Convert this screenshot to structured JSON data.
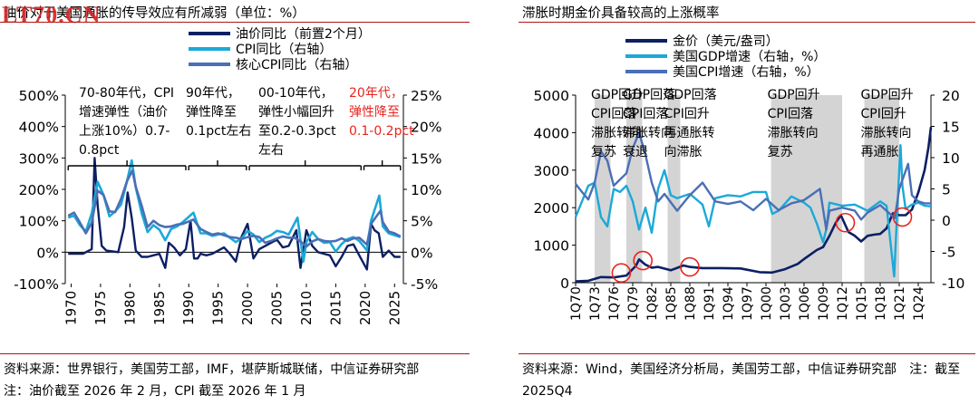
{
  "left": {
    "title": "油价对于美国通胀的传导效应有所减弱（单位：%）",
    "watermark": "LT70.CN",
    "source": "资料来源：世界银行，美国劳工部，IMF，堪萨斯城联储，中信证券研究部　注：油价截至 2026 年 2 月，CPI 截至 2026 年 1 月",
    "annotations": [
      {
        "lines": [
          "70-80年代，CPI",
          "增速弹性（油价",
          "上涨10%）0.7-",
          "0.8pct"
        ],
        "color": "#000000"
      },
      {
        "lines": [
          "90年代，",
          "弹性降至",
          "0.1pct左右"
        ],
        "color": "#000000"
      },
      {
        "lines": [
          "00-10年代，",
          "弹性小幅回升",
          "至0.2-0.3pct",
          "左右"
        ],
        "color": "#000000"
      },
      {
        "lines": [
          "20年代，",
          "弹性降至",
          "0.1-0.2pct"
        ],
        "color": "#e8251f"
      }
    ],
    "chart_data": {
      "type": "line",
      "title": "油价对于美国通胀的传导效应有所减弱（单位：%）",
      "x_ticks": [
        "1970",
        "1975",
        "1980",
        "1985",
        "1990",
        "1995",
        "2000",
        "2005",
        "2010",
        "2015",
        "2020",
        "2025"
      ],
      "y_left_ticks": [
        "500%",
        "400%",
        "300%",
        "200%",
        "100%",
        "0%",
        "-100%"
      ],
      "y_right_ticks": [
        "25%",
        "20%",
        "15%",
        "10%",
        "5%",
        "0%",
        "-5%"
      ],
      "ylim_left": [
        -100,
        500
      ],
      "ylim_right": [
        -5,
        25
      ],
      "xlim": [
        1969,
        2026.5
      ],
      "legend_position": "top-right",
      "series": [
        {
          "name": "油价同比（前置2个月）",
          "axis": "left",
          "color": "#0b1f63",
          "x": [
            1969.5,
            1970.5,
            1972,
            1973.5,
            1974,
            1974.5,
            1975.2,
            1976,
            1978,
            1979,
            1979.6,
            1980.3,
            1981,
            1982,
            1983,
            1984,
            1985,
            1986,
            1986.6,
            1987.5,
            1988.5,
            1989.5,
            1990.3,
            1990.9,
            1991.5,
            1992,
            1993,
            1994,
            1995,
            1996,
            1997,
            1998,
            1999,
            2000,
            2001,
            2002,
            2003,
            2004,
            2005,
            2006,
            2007,
            2008.3,
            2009,
            2010,
            2011,
            2012,
            2013,
            2014,
            2015,
            2016,
            2017,
            2018,
            2019,
            2020.3,
            2021,
            2021.6,
            2022.3,
            2023,
            2024,
            2025,
            2026
          ],
          "values": [
            -5,
            -5,
            -5,
            10,
            300,
            150,
            20,
            5,
            0,
            80,
            190,
            110,
            5,
            -15,
            -15,
            -10,
            -5,
            -50,
            30,
            15,
            -10,
            10,
            100,
            -20,
            -20,
            -5,
            -10,
            -5,
            5,
            15,
            -5,
            -30,
            50,
            90,
            -20,
            10,
            20,
            30,
            40,
            15,
            20,
            70,
            -50,
            70,
            20,
            0,
            -5,
            -10,
            -45,
            -15,
            20,
            25,
            -10,
            -55,
            90,
            70,
            60,
            -15,
            5,
            -15,
            -15
          ]
        },
        {
          "name": "CPI同比（右轴）",
          "axis": "right",
          "color": "#1ba9d8",
          "x": [
            1969.5,
            1970.5,
            1971.5,
            1972.5,
            1973.5,
            1974.5,
            1975.5,
            1976.5,
            1977.5,
            1978.5,
            1979.5,
            1980.3,
            1981,
            1982,
            1983,
            1984,
            1985,
            1986,
            1987,
            1988,
            1989,
            1990.8,
            1992,
            1993,
            1994,
            1995,
            1996,
            1997,
            1998,
            1999,
            2000,
            2001,
            2002,
            2003,
            2004,
            2005,
            2006,
            2007,
            2008.5,
            2009.5,
            2010,
            2011,
            2012,
            2013,
            2014,
            2015,
            2016,
            2017,
            2018,
            2019,
            2020.3,
            2021,
            2022.4,
            2023,
            2024,
            2025,
            2026
          ],
          "values": [
            5.5,
            5.8,
            4.3,
            3.3,
            6.2,
            11.2,
            9.1,
            5.7,
            6.5,
            7.6,
            11.3,
            14.6,
            10.3,
            6.2,
            3.2,
            4.3,
            3.6,
            1.9,
            3.7,
            4.1,
            4.8,
            6.3,
            3.0,
            3.0,
            2.6,
            2.8,
            3.0,
            2.3,
            1.6,
            2.2,
            3.4,
            2.8,
            1.6,
            2.3,
            2.7,
            3.4,
            3.2,
            2.8,
            5.5,
            -1.5,
            1.6,
            3.2,
            2.1,
            1.5,
            1.6,
            0.1,
            1.3,
            2.1,
            2.4,
            1.8,
            0.3,
            5.0,
            9.0,
            4.1,
            3.0,
            2.7,
            2.4
          ]
        },
        {
          "name": "核心CPI同比（右轴）",
          "axis": "right",
          "color": "#4a6fb5",
          "x": [
            1969.5,
            1970.5,
            1971.5,
            1972.5,
            1973.5,
            1974.5,
            1975.5,
            1976.5,
            1977.5,
            1978.5,
            1979.5,
            1980.4,
            1981,
            1982,
            1983,
            1984,
            1985,
            1986,
            1987,
            1988,
            1989,
            1990.8,
            1992,
            1993,
            1994,
            1995,
            1996,
            1997,
            1998,
            1999,
            2000,
            2001,
            2002,
            2003,
            2004,
            2005,
            2006,
            2007,
            2008,
            2009,
            2010,
            2011,
            2012,
            2013,
            2014,
            2015,
            2016,
            2017,
            2018,
            2019,
            2020.3,
            2021,
            2022.6,
            2023,
            2024,
            2025,
            2026
          ],
          "values": [
            5.8,
            6.3,
            4.7,
            3.0,
            4.7,
            9.8,
            9.1,
            6.5,
            6.4,
            8.5,
            11.3,
            13.0,
            10.4,
            7.4,
            4.0,
            5.0,
            4.3,
            4.0,
            4.1,
            4.4,
            4.5,
            5.2,
            3.7,
            3.2,
            2.8,
            3.0,
            2.7,
            2.4,
            2.3,
            2.1,
            2.4,
            2.6,
            2.4,
            1.5,
            1.8,
            2.2,
            2.5,
            2.3,
            2.3,
            1.7,
            0.9,
            1.7,
            2.1,
            1.8,
            1.7,
            1.8,
            2.2,
            1.8,
            2.2,
            2.3,
            1.2,
            4.5,
            6.6,
            4.8,
            3.3,
            3.0,
            2.5
          ]
        }
      ]
    }
  },
  "right": {
    "title": "滞胀时期金价具备较高的上涨概率",
    "source": "资料来源：Wind，美国经济分析局，美国劳工部，中信证券研究部　注：截至 2025Q4",
    "bands": [
      {
        "x0": 1973.0,
        "x1": 1975.5,
        "lines": [
          "GDP回升",
          "CPI回落",
          "滞胀转向",
          "复苏"
        ]
      },
      {
        "x0": 1978.0,
        "x1": 1980.5,
        "lines": [
          "GDP回落",
          "CPI回落",
          "滞胀转向",
          "衰退"
        ]
      },
      {
        "x0": 1984.5,
        "x1": 1986.5,
        "lines": [
          "GDP回落",
          "CPI回升",
          "再通胀转",
          "向滞胀"
        ]
      },
      {
        "x0": 2000.8,
        "x1": 2012.0,
        "lines": [
          "GDP回升",
          "CPI回落",
          "滞胀转向",
          "复苏"
        ]
      },
      {
        "x0": 2015.5,
        "x1": 2021.0,
        "lines": [
          "GDP回升",
          "CPI回升",
          "滞胀转向",
          "再通胀"
        ]
      }
    ],
    "chart_data": {
      "type": "line",
      "title": "滞胀时期金价具备较高的上涨概率",
      "x_ticks": [
        "1Q70",
        "1Q73",
        "1Q76",
        "1Q79",
        "1Q82",
        "1Q85",
        "1Q88",
        "1Q91",
        "1Q94",
        "1Q97",
        "1Q00",
        "1Q03",
        "1Q06",
        "1Q09",
        "1Q12",
        "1Q15",
        "1Q18",
        "1Q21",
        "1Q24"
      ],
      "y_left_ticks": [
        "5000",
        "4000",
        "3000",
        "2000",
        "1000",
        "0"
      ],
      "y_right_ticks": [
        "20",
        "15",
        "10",
        "5",
        "0",
        "-5",
        "-10"
      ],
      "ylim_left": [
        0,
        5000
      ],
      "ylim_right": [
        -10,
        20
      ],
      "xlim": [
        1970,
        2026
      ],
      "legend_position": "top-center",
      "series": [
        {
          "name": "金价（美元/盎司）",
          "axis": "left",
          "color": "#0b1f63",
          "x": [
            1970,
            1972,
            1974,
            1976,
            1978,
            1979.5,
            1980,
            1981,
            1982,
            1983,
            1985,
            1987,
            1988,
            1990,
            1993,
            1996,
            1999,
            2001,
            2003,
            2005,
            2006,
            2008,
            2009,
            2010,
            2011,
            2011.8,
            2013,
            2014,
            2015,
            2016,
            2017,
            2018,
            2019,
            2020,
            2021,
            2022,
            2023,
            2024,
            2025,
            2025.6,
            2026
          ],
          "values": [
            35,
            50,
            150,
            140,
            190,
            450,
            620,
            480,
            400,
            420,
            330,
            460,
            420,
            390,
            390,
            380,
            280,
            270,
            360,
            500,
            630,
            870,
            950,
            1250,
            1600,
            1800,
            1350,
            1250,
            1100,
            1250,
            1280,
            1300,
            1450,
            1850,
            1800,
            1800,
            1950,
            2400,
            3000,
            3600,
            4150
          ]
        },
        {
          "name": "美国GDP增速（右轴，%）",
          "axis": "right",
          "color": "#1ba9d8",
          "x": [
            1970,
            1971,
            1972,
            1973,
            1974,
            1975,
            1976,
            1977,
            1978,
            1979,
            1980,
            1981,
            1982,
            1983,
            1984,
            1985,
            1986,
            1988,
            1990,
            1991,
            1992,
            1994,
            1996,
            1998,
            2000,
            2001,
            2002,
            2004,
            2006,
            2007,
            2008,
            2009,
            2009.5,
            2010,
            2012,
            2014,
            2016,
            2018,
            2019,
            2020.2,
            2020.5,
            2021.2,
            2021.5,
            2022,
            2023,
            2024,
            2025,
            2026
          ],
          "values": [
            0.5,
            3.0,
            5.5,
            6.0,
            0.5,
            -1.0,
            5.0,
            4.5,
            5.5,
            3.0,
            -1.5,
            2.0,
            -2.0,
            5.0,
            8.0,
            4.0,
            3.5,
            4.2,
            2.5,
            -1.0,
            3.5,
            4.0,
            3.8,
            4.5,
            4.5,
            1.0,
            1.5,
            3.8,
            2.8,
            2.0,
            -0.5,
            -3.5,
            -1.5,
            2.8,
            2.3,
            2.5,
            1.5,
            3.0,
            2.3,
            -9.0,
            -2.5,
            12.0,
            5.5,
            1.8,
            2.5,
            2.8,
            2.3,
            2.2
          ]
        },
        {
          "name": "美国CPI增速（右轴，%）",
          "axis": "right",
          "color": "#4a6fb5",
          "x": [
            1970,
            1971,
            1972,
            1973,
            1974,
            1975,
            1976,
            1977,
            1978,
            1979,
            1980,
            1981,
            1982,
            1983,
            1984,
            1986,
            1988,
            1990,
            1992,
            1994,
            1996,
            1998,
            2000,
            2002,
            2004,
            2006,
            2008.5,
            2009.5,
            2010,
            2012,
            2014,
            2015,
            2016,
            2018,
            2020.3,
            2021,
            2022.4,
            2023,
            2024,
            2025,
            2026
          ],
          "values": [
            5.8,
            4.5,
            3.3,
            6.0,
            11.0,
            9.5,
            5.5,
            6.5,
            7.5,
            11.5,
            14.0,
            10.5,
            6.0,
            3.0,
            4.2,
            1.5,
            4.0,
            6.0,
            3.0,
            2.6,
            3.0,
            1.6,
            3.4,
            1.6,
            2.7,
            3.2,
            5.0,
            -1.5,
            1.5,
            2.0,
            1.5,
            0.1,
            1.2,
            2.4,
            0.3,
            5.0,
            9.0,
            4.0,
            3.0,
            2.7,
            2.7
          ]
        }
      ]
    }
  }
}
